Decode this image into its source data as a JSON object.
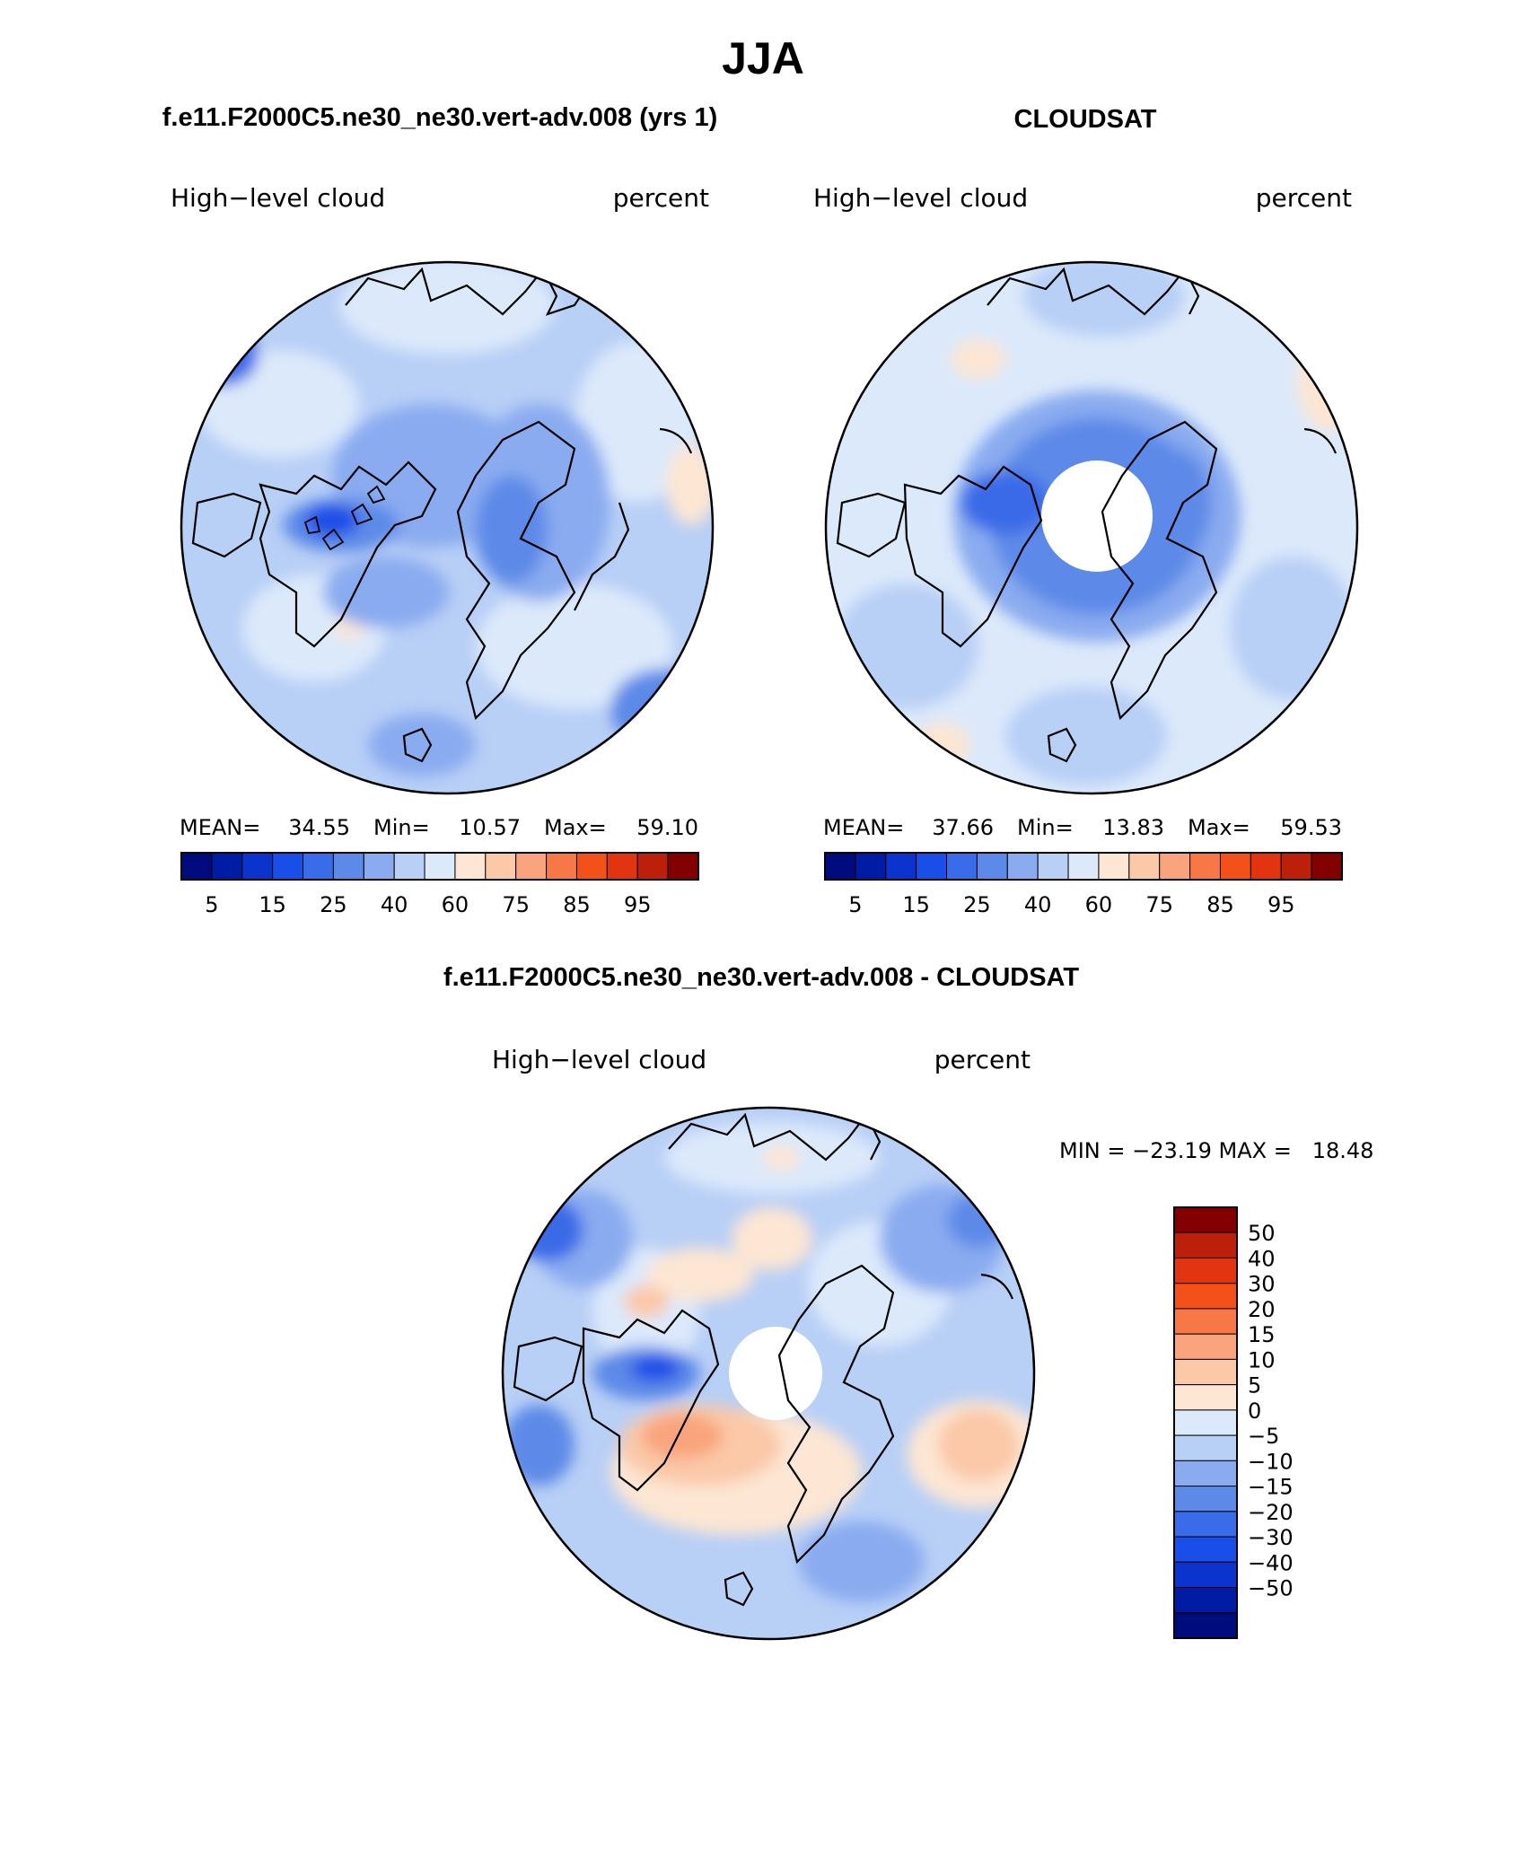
{
  "main_title": "JJA",
  "panels": {
    "model": {
      "title": "f.e11.F2000C5.ne30_ne30.vert-adv.008 (yrs 1)",
      "variable": "High−level cloud",
      "units": "percent",
      "stats": {
        "mean_label": "MEAN=",
        "mean": "34.55",
        "min_label": "Min=",
        "min": "10.57",
        "max_label": "Max=",
        "max": "59.10"
      }
    },
    "obs": {
      "title": "CLOUDSAT",
      "variable": "High−level cloud",
      "units": "percent",
      "stats": {
        "mean_label": "MEAN=",
        "mean": "37.66",
        "min_label": "Min=",
        "min": "13.83",
        "max_label": "Max=",
        "max": "59.53"
      }
    },
    "diff": {
      "title": "f.e11.F2000C5.ne30_ne30.vert-adv.008 - CLOUDSAT",
      "variable": "High−level cloud",
      "units": "percent",
      "stats_text": "MIN = −23.19 MAX =   18.48"
    }
  },
  "colorbar_abs": {
    "colors": [
      "#000b7e",
      "#001ca5",
      "#0a34cd",
      "#1a4ee8",
      "#3a6be8",
      "#5d8ae8",
      "#8aabf0",
      "#b8cff6",
      "#dce9fb",
      "#fde6d3",
      "#fbc8a8",
      "#f9a47c",
      "#f77846",
      "#f3501a",
      "#e23410",
      "#bc1f0a",
      "#820000"
    ],
    "labels": [
      "5",
      "15",
      "25",
      "40",
      "60",
      "75",
      "85",
      "95"
    ]
  },
  "colorbar_diff": {
    "colors": [
      "#820000",
      "#bc1f0a",
      "#e23410",
      "#f3501a",
      "#f77846",
      "#f9a47c",
      "#fbc8a8",
      "#fde6d3",
      "#dce9fb",
      "#b8cff6",
      "#8aabf0",
      "#5d8ae8",
      "#3a6be8",
      "#1a4ee8",
      "#0a34cd",
      "#001ca5",
      "#000b7e"
    ],
    "labels": [
      "50",
      "40",
      "30",
      "20",
      "15",
      "10",
      "5",
      "0",
      "−5",
      "−10",
      "−15",
      "−20",
      "−30",
      "−40",
      "−50"
    ]
  },
  "map_colors": {
    "pale_blue": "#dce9fb",
    "light_blue": "#b8cff6",
    "mid_blue": "#8aabf0",
    "blue": "#5d8ae8",
    "dark_blue": "#3a6be8",
    "pale_peach": "#fde6d3",
    "peach": "#fbc8a8",
    "salmon": "#f9a47c",
    "coast": "#000000",
    "missing": "#ffffff"
  }
}
